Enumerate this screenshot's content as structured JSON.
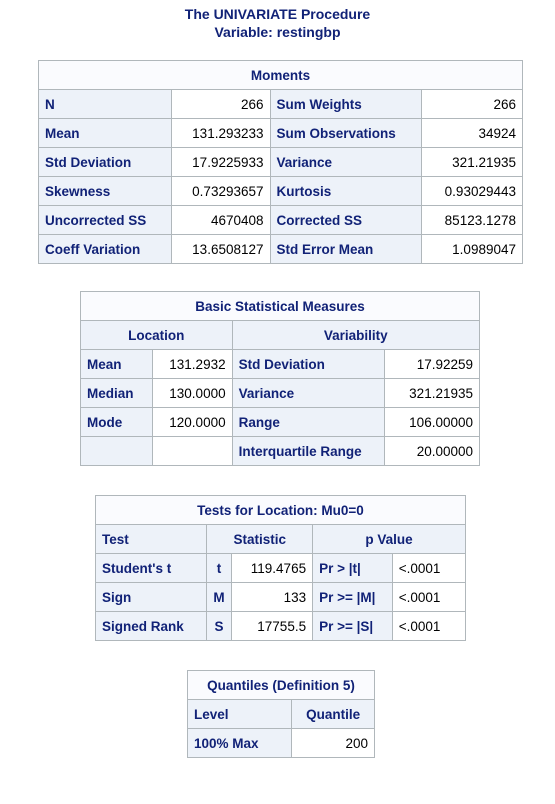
{
  "header": {
    "procedure": "The UNIVARIATE Procedure",
    "variable": "Variable: restingbp"
  },
  "moments": {
    "caption": "Moments",
    "rows": [
      [
        "N",
        "266",
        "Sum Weights",
        "266"
      ],
      [
        "Mean",
        "131.293233",
        "Sum Observations",
        "34924"
      ],
      [
        "Std Deviation",
        "17.9225933",
        "Variance",
        "321.21935"
      ],
      [
        "Skewness",
        "0.73293657",
        "Kurtosis",
        "0.93029443"
      ],
      [
        "Uncorrected SS",
        "4670408",
        "Corrected SS",
        "85123.1278"
      ],
      [
        "Coeff Variation",
        "13.6508127",
        "Std Error Mean",
        "1.0989047"
      ]
    ]
  },
  "basic": {
    "caption": "Basic Statistical Measures",
    "location_header": "Location",
    "variability_header": "Variability",
    "rows": [
      [
        "Mean",
        "131.2932",
        "Std Deviation",
        "17.92259"
      ],
      [
        "Median",
        "130.0000",
        "Variance",
        "321.21935"
      ],
      [
        "Mode",
        "120.0000",
        "Range",
        "106.00000"
      ],
      [
        "",
        "",
        "Interquartile Range",
        "20.00000"
      ]
    ]
  },
  "tests": {
    "caption": "Tests for Location: Mu0=0",
    "test_header": "Test",
    "statistic_header": "Statistic",
    "pvalue_header": "p Value",
    "rows": [
      [
        "Student's t",
        "t",
        "119.4765",
        "Pr > |t|",
        "<.0001"
      ],
      [
        "Sign",
        "M",
        "133",
        "Pr >= |M|",
        "<.0001"
      ],
      [
        "Signed Rank",
        "S",
        "17755.5",
        "Pr >= |S|",
        "<.0001"
      ]
    ]
  },
  "quantiles": {
    "caption": "Quantiles (Definition 5)",
    "level_header": "Level",
    "quantile_header": "Quantile",
    "rows": [
      [
        "100% Max",
        "200"
      ]
    ]
  }
}
